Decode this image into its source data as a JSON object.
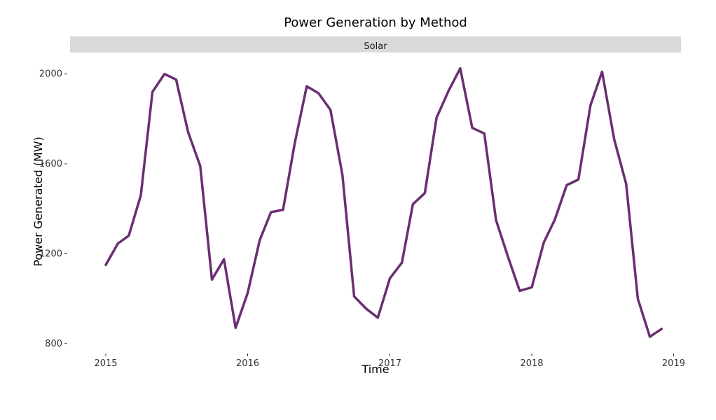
{
  "chart_data": {
    "type": "line",
    "title": "Power Generation by Method",
    "facet_label": "Solar",
    "xlabel": "Time",
    "ylabel": "Power Generated (MW)",
    "x_ticks": [
      "2015",
      "2016",
      "2017",
      "2018",
      "2019"
    ],
    "y_ticks": [
      800,
      1200,
      1600,
      2000
    ],
    "xlim": [
      "2014-10-01",
      "2019-01-20"
    ],
    "ylim": [
      765,
      2080
    ],
    "grid": false,
    "line_color": "#6a2e72",
    "series": [
      {
        "x": [
          "2015-01-01",
          "2015-02-01",
          "2015-03-01",
          "2015-04-01",
          "2015-05-01",
          "2015-06-01",
          "2015-07-01",
          "2015-08-01",
          "2015-09-01",
          "2015-10-01",
          "2015-11-01",
          "2015-12-01",
          "2016-01-01",
          "2016-02-01",
          "2016-03-01",
          "2016-04-01",
          "2016-05-01",
          "2016-06-01",
          "2016-07-01",
          "2016-08-01",
          "2016-09-01",
          "2016-10-01",
          "2016-11-01",
          "2016-12-01",
          "2017-01-01",
          "2017-02-01",
          "2017-03-01",
          "2017-04-01",
          "2017-05-01",
          "2017-06-01",
          "2017-07-01",
          "2017-08-01",
          "2017-09-01",
          "2017-10-01",
          "2017-11-01",
          "2017-12-01",
          "2018-01-01",
          "2018-02-01",
          "2018-03-01",
          "2018-04-01",
          "2018-05-01",
          "2018-06-01",
          "2018-07-01",
          "2018-08-01",
          "2018-09-01",
          "2018-10-01",
          "2018-11-01",
          "2018-12-01"
        ],
        "values": [
          1150,
          1245,
          1280,
          1460,
          1920,
          2000,
          1975,
          1740,
          1590,
          1085,
          1175,
          870,
          1025,
          1260,
          1385,
          1395,
          1690,
          1945,
          1915,
          1840,
          1550,
          1010,
          955,
          915,
          1090,
          1160,
          1420,
          1470,
          1805,
          1925,
          2025,
          1760,
          1735,
          1350,
          1185,
          1035,
          1050,
          1250,
          1350,
          1505,
          1530,
          1860,
          2010,
          1710,
          1510,
          1000,
          830,
          865
        ]
      }
    ]
  }
}
